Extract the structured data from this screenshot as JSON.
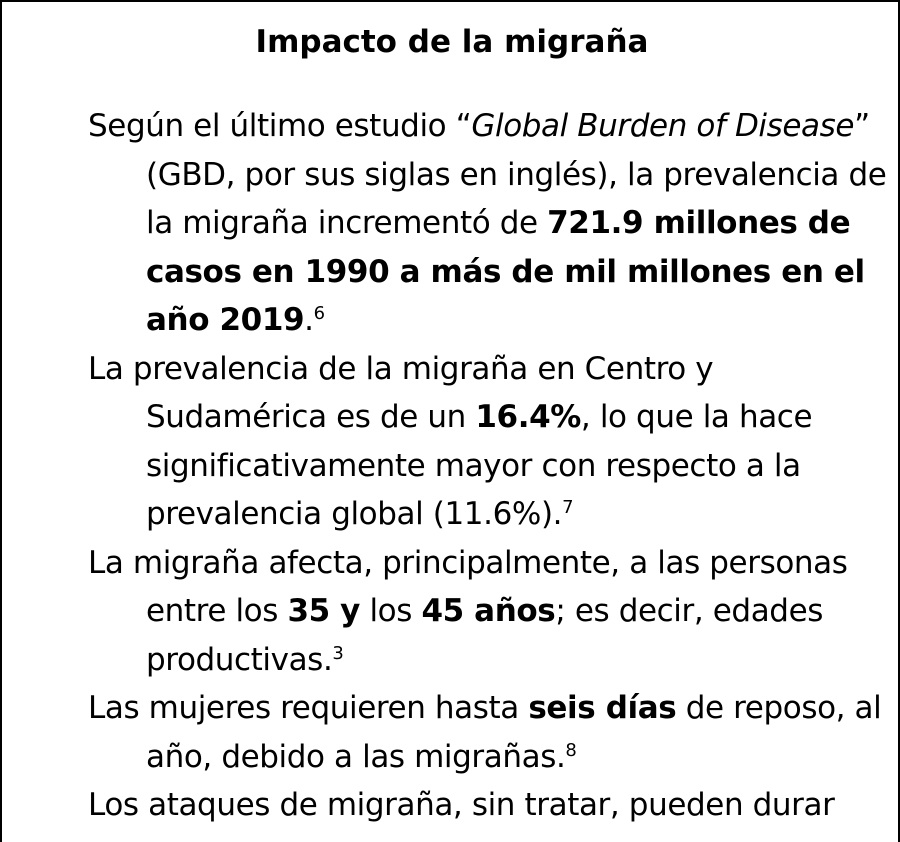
{
  "title": "Impacto de la migraña",
  "items": [
    {
      "t1": "Según el último estudio “",
      "i1": "Global Burden of Disease",
      "t2": "” (GBD, por sus siglas en inglés), la prevalencia de la migraña incrementó de ",
      "b1": "721.9 millones de casos en 1990 a más de mil millones en el año 2019",
      "t3": ".",
      "sup": "6"
    },
    {
      "t1": "La prevalencia de la migraña en Centro y Sudamérica es de un ",
      "b1": "16.4%",
      "t2": ", lo que la hace significativamente mayor con respecto a la prevalencia global (11.6%).",
      "sup": "7"
    },
    {
      "t1": "La migraña afecta, principalmente, a las personas entre los ",
      "b1": "35 y",
      "t2": " los ",
      "b2": "45 años",
      "t3": "; es decir, edades productivas.",
      "sup": "3"
    },
    {
      "t1": "Las mujeres requieren hasta ",
      "b1": "seis días",
      "t2": " de reposo, al año, debido a las migrañas.",
      "sup": "8"
    },
    {
      "t1": "Los ataques de migraña, sin tratar, pueden durar"
    }
  ]
}
